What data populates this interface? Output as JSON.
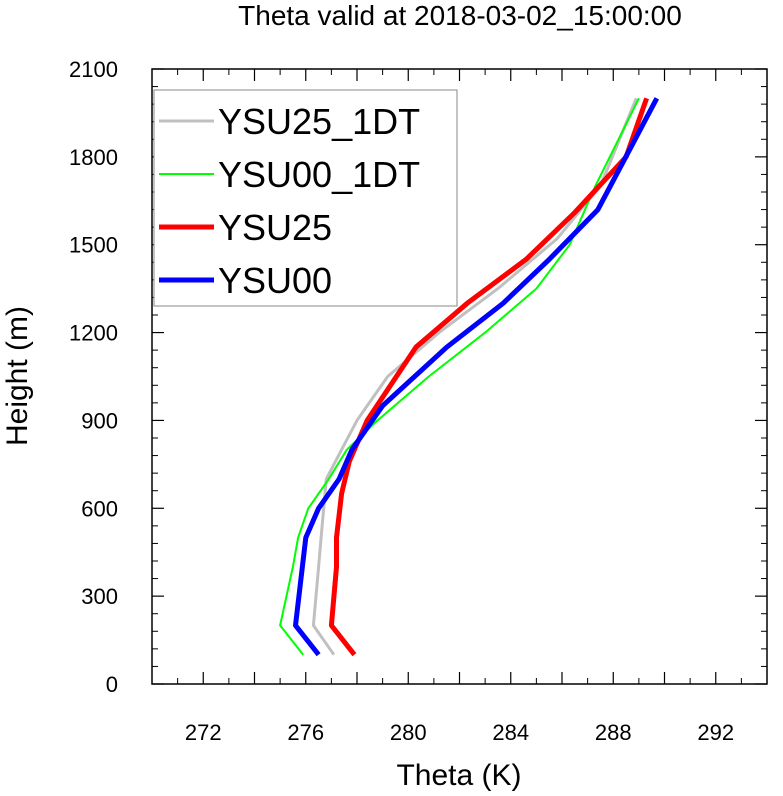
{
  "chart_data": {
    "type": "line",
    "title": "Theta valid at 2018-03-02_15:00:00",
    "xlabel": "Theta (K)",
    "ylabel": "Height (m)",
    "xlim": [
      270,
      294
    ],
    "ylim": [
      0,
      2100
    ],
    "xticks": [
      272,
      276,
      280,
      284,
      288,
      292
    ],
    "yticks": [
      0,
      300,
      600,
      900,
      1200,
      1500,
      1800,
      2100
    ],
    "grid": false,
    "legend_position": "top-left",
    "series": [
      {
        "name": "YSU25_1DT",
        "color": "#c0c0c0",
        "width": 3,
        "points": [
          [
            277.1,
            100
          ],
          [
            276.3,
            200
          ],
          [
            276.5,
            400
          ],
          [
            276.6,
            500
          ],
          [
            276.8,
            700
          ],
          [
            277.4,
            800
          ],
          [
            278.0,
            900
          ],
          [
            279.2,
            1050
          ],
          [
            281.2,
            1200
          ],
          [
            283.5,
            1350
          ],
          [
            285.8,
            1520
          ],
          [
            287.5,
            1700
          ],
          [
            288.9,
            2000
          ]
        ]
      },
      {
        "name": "YSU00_1DT",
        "color": "#00ff00",
        "width": 2,
        "points": [
          [
            275.9,
            100
          ],
          [
            275.0,
            200
          ],
          [
            275.5,
            400
          ],
          [
            275.7,
            500
          ],
          [
            276.1,
            600
          ],
          [
            276.9,
            700
          ],
          [
            277.6,
            800
          ],
          [
            278.8,
            900
          ],
          [
            280.8,
            1050
          ],
          [
            283.0,
            1200
          ],
          [
            285.0,
            1350
          ],
          [
            286.3,
            1500
          ],
          [
            287.3,
            1700
          ],
          [
            289.0,
            2000
          ]
        ]
      },
      {
        "name": "YSU25",
        "color": "#ff0000",
        "width": 5,
        "points": [
          [
            277.9,
            100
          ],
          [
            277.0,
            200
          ],
          [
            277.2,
            400
          ],
          [
            277.2,
            500
          ],
          [
            277.4,
            650
          ],
          [
            277.7,
            760
          ],
          [
            278.4,
            900
          ],
          [
            280.3,
            1150
          ],
          [
            282.3,
            1300
          ],
          [
            284.6,
            1450
          ],
          [
            286.5,
            1610
          ],
          [
            288.5,
            1800
          ],
          [
            289.3,
            2000
          ]
        ]
      },
      {
        "name": "YSU00",
        "color": "#0000ff",
        "width": 5,
        "points": [
          [
            276.5,
            100
          ],
          [
            275.6,
            200
          ],
          [
            276.0,
            500
          ],
          [
            276.5,
            600
          ],
          [
            277.3,
            700
          ],
          [
            277.8,
            800
          ],
          [
            279.0,
            950
          ],
          [
            281.5,
            1150
          ],
          [
            283.7,
            1300
          ],
          [
            285.5,
            1450
          ],
          [
            287.4,
            1620
          ],
          [
            289.7,
            2000
          ]
        ]
      }
    ]
  }
}
